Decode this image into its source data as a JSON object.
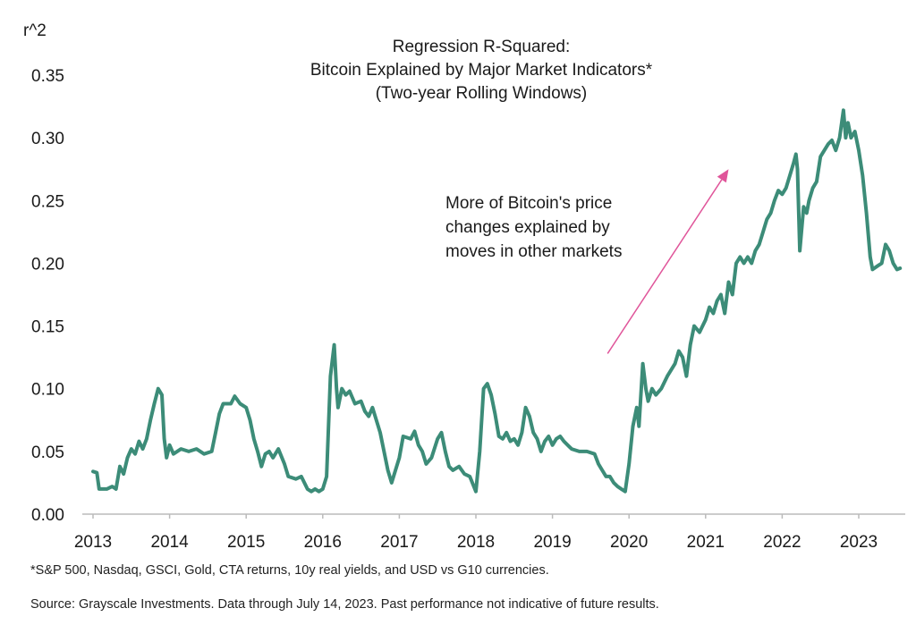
{
  "chart_data": {
    "type": "line",
    "title": [
      "Regression R-Squared:",
      "Bitcoin Explained by Major Market Indicators*",
      "(Two-year Rolling Windows)"
    ],
    "ylabel": "r^2",
    "xlabel": "",
    "ylim": [
      0,
      0.35
    ],
    "yticks": [
      0.0,
      0.05,
      0.1,
      0.15,
      0.2,
      0.25,
      0.3,
      0.35
    ],
    "ytick_labels": [
      "0.00",
      "0.05",
      "0.10",
      "0.15",
      "0.20",
      "0.25",
      "0.30",
      "0.35"
    ],
    "xlim": [
      2013.0,
      2023.6
    ],
    "xticks": [
      2013,
      2014,
      2015,
      2016,
      2017,
      2018,
      2019,
      2020,
      2021,
      2022,
      2023
    ],
    "xtick_labels": [
      "2013",
      "2014",
      "2015",
      "2016",
      "2017",
      "2018",
      "2019",
      "2020",
      "2021",
      "2022",
      "2023"
    ],
    "grid": false,
    "legend": "none",
    "series": [
      {
        "color": "#3c8c78",
        "points": [
          [
            2013.0,
            0.034
          ],
          [
            2013.05,
            0.033
          ],
          [
            2013.08,
            0.02
          ],
          [
            2013.18,
            0.02
          ],
          [
            2013.25,
            0.022
          ],
          [
            2013.3,
            0.02
          ],
          [
            2013.35,
            0.038
          ],
          [
            2013.4,
            0.032
          ],
          [
            2013.45,
            0.045
          ],
          [
            2013.5,
            0.052
          ],
          [
            2013.55,
            0.048
          ],
          [
            2013.6,
            0.058
          ],
          [
            2013.65,
            0.052
          ],
          [
            2013.7,
            0.06
          ],
          [
            2013.75,
            0.075
          ],
          [
            2013.8,
            0.088
          ],
          [
            2013.85,
            0.1
          ],
          [
            2013.9,
            0.095
          ],
          [
            2013.93,
            0.06
          ],
          [
            2013.96,
            0.045
          ],
          [
            2014.0,
            0.055
          ],
          [
            2014.05,
            0.048
          ],
          [
            2014.15,
            0.052
          ],
          [
            2014.25,
            0.05
          ],
          [
            2014.35,
            0.052
          ],
          [
            2014.45,
            0.048
          ],
          [
            2014.55,
            0.05
          ],
          [
            2014.6,
            0.065
          ],
          [
            2014.65,
            0.08
          ],
          [
            2014.7,
            0.088
          ],
          [
            2014.8,
            0.088
          ],
          [
            2014.85,
            0.094
          ],
          [
            2014.92,
            0.088
          ],
          [
            2015.0,
            0.085
          ],
          [
            2015.05,
            0.075
          ],
          [
            2015.1,
            0.06
          ],
          [
            2015.15,
            0.05
          ],
          [
            2015.2,
            0.038
          ],
          [
            2015.25,
            0.048
          ],
          [
            2015.3,
            0.05
          ],
          [
            2015.35,
            0.045
          ],
          [
            2015.42,
            0.052
          ],
          [
            2015.5,
            0.04
          ],
          [
            2015.55,
            0.03
          ],
          [
            2015.65,
            0.028
          ],
          [
            2015.72,
            0.03
          ],
          [
            2015.8,
            0.02
          ],
          [
            2015.85,
            0.018
          ],
          [
            2015.9,
            0.02
          ],
          [
            2015.95,
            0.018
          ],
          [
            2016.0,
            0.02
          ],
          [
            2016.05,
            0.03
          ],
          [
            2016.1,
            0.11
          ],
          [
            2016.15,
            0.135
          ],
          [
            2016.18,
            0.1
          ],
          [
            2016.2,
            0.085
          ],
          [
            2016.25,
            0.1
          ],
          [
            2016.3,
            0.095
          ],
          [
            2016.35,
            0.098
          ],
          [
            2016.42,
            0.088
          ],
          [
            2016.5,
            0.09
          ],
          [
            2016.55,
            0.082
          ],
          [
            2016.6,
            0.078
          ],
          [
            2016.65,
            0.085
          ],
          [
            2016.7,
            0.075
          ],
          [
            2016.75,
            0.065
          ],
          [
            2016.8,
            0.05
          ],
          [
            2016.85,
            0.035
          ],
          [
            2016.9,
            0.025
          ],
          [
            2016.95,
            0.035
          ],
          [
            2017.0,
            0.045
          ],
          [
            2017.05,
            0.062
          ],
          [
            2017.15,
            0.06
          ],
          [
            2017.2,
            0.066
          ],
          [
            2017.25,
            0.055
          ],
          [
            2017.3,
            0.05
          ],
          [
            2017.35,
            0.04
          ],
          [
            2017.42,
            0.045
          ],
          [
            2017.5,
            0.06
          ],
          [
            2017.55,
            0.065
          ],
          [
            2017.6,
            0.05
          ],
          [
            2017.65,
            0.038
          ],
          [
            2017.7,
            0.035
          ],
          [
            2017.78,
            0.038
          ],
          [
            2017.85,
            0.032
          ],
          [
            2017.92,
            0.03
          ],
          [
            2018.0,
            0.018
          ],
          [
            2018.05,
            0.05
          ],
          [
            2018.1,
            0.1
          ],
          [
            2018.15,
            0.104
          ],
          [
            2018.2,
            0.095
          ],
          [
            2018.25,
            0.08
          ],
          [
            2018.3,
            0.062
          ],
          [
            2018.35,
            0.06
          ],
          [
            2018.4,
            0.065
          ],
          [
            2018.45,
            0.058
          ],
          [
            2018.5,
            0.06
          ],
          [
            2018.55,
            0.055
          ],
          [
            2018.6,
            0.065
          ],
          [
            2018.65,
            0.085
          ],
          [
            2018.7,
            0.078
          ],
          [
            2018.75,
            0.065
          ],
          [
            2018.8,
            0.06
          ],
          [
            2018.85,
            0.05
          ],
          [
            2018.9,
            0.058
          ],
          [
            2018.95,
            0.062
          ],
          [
            2019.0,
            0.055
          ],
          [
            2019.05,
            0.06
          ],
          [
            2019.1,
            0.062
          ],
          [
            2019.15,
            0.058
          ],
          [
            2019.25,
            0.052
          ],
          [
            2019.35,
            0.05
          ],
          [
            2019.45,
            0.05
          ],
          [
            2019.55,
            0.048
          ],
          [
            2019.6,
            0.04
          ],
          [
            2019.65,
            0.035
          ],
          [
            2019.7,
            0.03
          ],
          [
            2019.75,
            0.03
          ],
          [
            2019.8,
            0.025
          ],
          [
            2019.85,
            0.022
          ],
          [
            2019.9,
            0.02
          ],
          [
            2019.95,
            0.018
          ],
          [
            2020.0,
            0.04
          ],
          [
            2020.05,
            0.07
          ],
          [
            2020.1,
            0.085
          ],
          [
            2020.13,
            0.07
          ],
          [
            2020.18,
            0.12
          ],
          [
            2020.22,
            0.1
          ],
          [
            2020.25,
            0.09
          ],
          [
            2020.3,
            0.1
          ],
          [
            2020.35,
            0.095
          ],
          [
            2020.42,
            0.1
          ],
          [
            2020.5,
            0.11
          ],
          [
            2020.55,
            0.115
          ],
          [
            2020.6,
            0.12
          ],
          [
            2020.65,
            0.13
          ],
          [
            2020.7,
            0.125
          ],
          [
            2020.75,
            0.11
          ],
          [
            2020.8,
            0.135
          ],
          [
            2020.85,
            0.15
          ],
          [
            2020.92,
            0.145
          ],
          [
            2021.0,
            0.155
          ],
          [
            2021.05,
            0.165
          ],
          [
            2021.1,
            0.16
          ],
          [
            2021.15,
            0.17
          ],
          [
            2021.2,
            0.175
          ],
          [
            2021.25,
            0.16
          ],
          [
            2021.3,
            0.185
          ],
          [
            2021.35,
            0.175
          ],
          [
            2021.4,
            0.2
          ],
          [
            2021.45,
            0.205
          ],
          [
            2021.5,
            0.2
          ],
          [
            2021.55,
            0.205
          ],
          [
            2021.6,
            0.2
          ],
          [
            2021.65,
            0.21
          ],
          [
            2021.7,
            0.215
          ],
          [
            2021.75,
            0.225
          ],
          [
            2021.8,
            0.235
          ],
          [
            2021.85,
            0.24
          ],
          [
            2021.9,
            0.25
          ],
          [
            2021.95,
            0.258
          ],
          [
            2022.0,
            0.255
          ],
          [
            2022.05,
            0.26
          ],
          [
            2022.1,
            0.27
          ],
          [
            2022.15,
            0.28
          ],
          [
            2022.18,
            0.287
          ],
          [
            2022.2,
            0.275
          ],
          [
            2022.23,
            0.21
          ],
          [
            2022.28,
            0.245
          ],
          [
            2022.32,
            0.24
          ],
          [
            2022.35,
            0.25
          ],
          [
            2022.4,
            0.26
          ],
          [
            2022.45,
            0.265
          ],
          [
            2022.5,
            0.285
          ],
          [
            2022.55,
            0.29
          ],
          [
            2022.6,
            0.295
          ],
          [
            2022.65,
            0.298
          ],
          [
            2022.7,
            0.29
          ],
          [
            2022.75,
            0.3
          ],
          [
            2022.8,
            0.322
          ],
          [
            2022.83,
            0.3
          ],
          [
            2022.86,
            0.312
          ],
          [
            2022.9,
            0.3
          ],
          [
            2022.95,
            0.305
          ],
          [
            2023.0,
            0.29
          ],
          [
            2023.05,
            0.27
          ],
          [
            2023.1,
            0.24
          ],
          [
            2023.15,
            0.205
          ],
          [
            2023.18,
            0.195
          ],
          [
            2023.25,
            0.198
          ],
          [
            2023.3,
            0.2
          ],
          [
            2023.35,
            0.215
          ],
          [
            2023.4,
            0.21
          ],
          [
            2023.45,
            0.2
          ],
          [
            2023.5,
            0.195
          ],
          [
            2023.54,
            0.196
          ]
        ]
      }
    ],
    "annotation": {
      "lines": [
        "More of Bitcoin's price",
        "changes explained by",
        "moves in other markets"
      ],
      "arrow_color": "#e0559a",
      "arrow_from": [
        2019.72,
        0.128
      ],
      "arrow_to": [
        2021.3,
        0.275
      ]
    }
  },
  "footnotes": {
    "note": "*S&P 500, Nasdaq, GSCI, Gold, CTA returns, 10y real yields, and USD vs G10 currencies.",
    "source": "Source: Grayscale Investments. Data through July 14, 2023. Past performance not indicative of future results."
  }
}
